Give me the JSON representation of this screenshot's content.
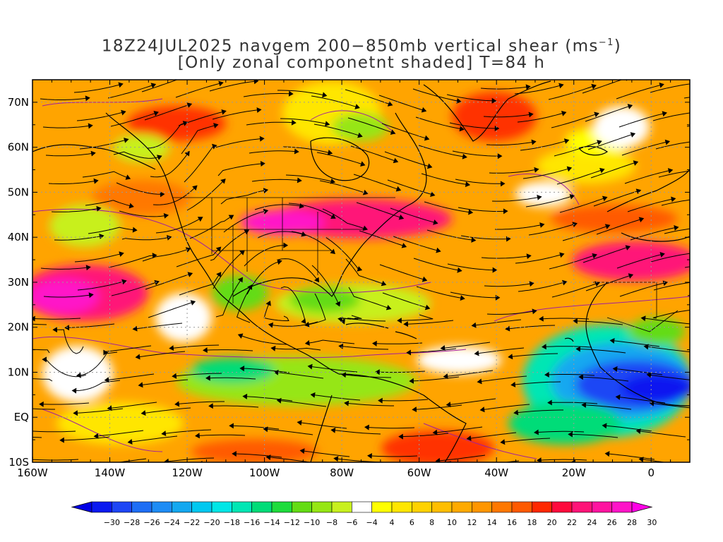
{
  "title": {
    "line1": "18Z24JUL2025 navgem 200−850mb vertical shear (ms",
    "units_sup": "−1",
    "line1_end": ")",
    "line2": "[Only zonal componetnt shaded] T=84 h"
  },
  "axes": {
    "lat_labels": [
      "70N",
      "60N",
      "50N",
      "40N",
      "30N",
      "20N",
      "10N",
      "EQ",
      "10S"
    ],
    "lon_labels": [
      "160W",
      "140W",
      "120W",
      "100W",
      "80W",
      "60W",
      "40W",
      "20W",
      "0"
    ]
  },
  "colorbar": {
    "labels": [
      "-30",
      "-28",
      "-26",
      "-24",
      "-22",
      "-20",
      "-18",
      "-16",
      "-14",
      "-12",
      "-10",
      "-8",
      "-6",
      "-4",
      "4",
      "6",
      "8",
      "10",
      "12",
      "14",
      "16",
      "18",
      "20",
      "22",
      "24",
      "26",
      "28",
      "30"
    ],
    "colors": [
      "#0a19f0",
      "#1e46f5",
      "#1e6ef5",
      "#1e8cf5",
      "#14a8f0",
      "#00c8f0",
      "#00e6e6",
      "#00e6b4",
      "#00dc78",
      "#1edc3c",
      "#64dc14",
      "#96e614",
      "#c8f01e",
      "#ffffff",
      "#ffff00",
      "#ffe600",
      "#ffd200",
      "#ffbe00",
      "#ffaa00",
      "#ff9600",
      "#ff7800",
      "#ff5a00",
      "#ff2800",
      "#ff0a3c",
      "#ff1478",
      "#ff14a0",
      "#ff14c8"
    ],
    "low_arrow_color": "#0000e6",
    "high_arrow_color": "#ff00e6"
  },
  "colors": {
    "background_shade": "#ffb300",
    "contour_color": "#a020a0",
    "coast_color": "#000000"
  }
}
